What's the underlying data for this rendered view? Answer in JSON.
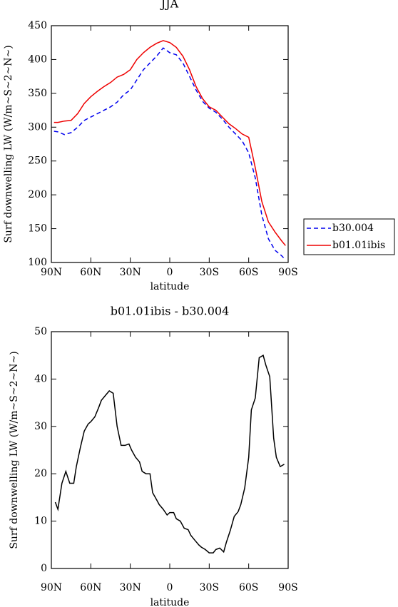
{
  "chart_data": [
    {
      "type": "line",
      "title": "JJA",
      "xlabel": "latitude",
      "ylabel": "Surf downwelling LW (W/m~S~2~N~)",
      "x": [
        88,
        85,
        80,
        75,
        70,
        65,
        60,
        55,
        50,
        45,
        40,
        35,
        30,
        25,
        20,
        15,
        10,
        5,
        0,
        -5,
        -10,
        -15,
        -20,
        -25,
        -30,
        -35,
        -40,
        -45,
        -50,
        -55,
        -60,
        -65,
        -70,
        -75,
        -80,
        -85,
        -88
      ],
      "series": [
        {
          "name": "b30.004",
          "color": "#0000ee",
          "dash": true,
          "values": [
            294,
            293,
            289,
            292,
            300,
            310,
            315,
            320,
            325,
            330,
            337,
            348,
            355,
            370,
            385,
            395,
            405,
            417,
            410,
            407,
            395,
            375,
            355,
            338,
            328,
            322,
            312,
            300,
            290,
            280,
            262,
            225,
            170,
            135,
            118,
            110,
            104
          ]
        },
        {
          "name": "b01.01ibis",
          "color": "#ee0000",
          "dash": false,
          "values": [
            307,
            307,
            309,
            310,
            320,
            335,
            345,
            353,
            360,
            366,
            374,
            378,
            385,
            400,
            410,
            418,
            424,
            428,
            425,
            418,
            405,
            385,
            360,
            342,
            330,
            325,
            315,
            305,
            298,
            290,
            285,
            240,
            190,
            160,
            145,
            132,
            125
          ]
        }
      ],
      "xlim": [
        90,
        -90
      ],
      "xticks": [
        {
          "value": 90,
          "label": "90N"
        },
        {
          "value": 60,
          "label": "60N"
        },
        {
          "value": 30,
          "label": "30N"
        },
        0,
        {
          "value": -30,
          "label": "30S"
        },
        {
          "value": -60,
          "label": "60S"
        },
        {
          "value": -90,
          "label": "90S"
        }
      ],
      "ylim": [
        100,
        450
      ],
      "yticks": [
        100,
        150,
        200,
        250,
        300,
        350,
        400,
        450
      ],
      "legend": "right"
    },
    {
      "type": "line",
      "title": "b01.01ibis - b30.004",
      "xlabel": "latitude",
      "ylabel": "Surf downwelling LW (W/m~S~2~N~)",
      "x": [
        87,
        85,
        82,
        79,
        76,
        73,
        71,
        68,
        65,
        62,
        60,
        57,
        54,
        52,
        49,
        46,
        43,
        40,
        37,
        34,
        31,
        29,
        26,
        23,
        21,
        18,
        15,
        13,
        10,
        8,
        5,
        2,
        0,
        -3,
        -5,
        -8,
        -11,
        -14,
        -16,
        -19,
        -22,
        -24,
        -27,
        -30,
        -33,
        -35,
        -38,
        -41,
        -43,
        -46,
        -49,
        -52,
        -54,
        -57,
        -60,
        -62,
        -65,
        -68,
        -71,
        -73,
        -76,
        -79,
        -81,
        -84,
        -87
      ],
      "values": [
        14,
        12.5,
        18,
        20.5,
        18,
        18,
        21.5,
        25.5,
        29,
        30.5,
        31,
        32,
        34,
        35.5,
        36.5,
        37.5,
        37,
        30,
        26,
        26,
        26.3,
        25,
        23.5,
        22.5,
        20.5,
        20,
        20,
        16,
        14.5,
        13.5,
        12.5,
        11.3,
        11.8,
        11.8,
        10.5,
        10,
        8.5,
        8.2,
        7,
        6,
        5,
        4.5,
        4,
        3.3,
        3.3,
        4,
        4.3,
        3.5,
        5.5,
        8,
        11,
        12,
        13.5,
        17,
        23.5,
        33.5,
        36,
        44.5,
        45,
        43,
        40.5,
        27.5,
        23.5,
        21.5,
        22
      ],
      "color": "#000000",
      "xlim": [
        90,
        -90
      ],
      "xticks": [
        {
          "value": 90,
          "label": "90N"
        },
        {
          "value": 60,
          "label": "60N"
        },
        {
          "value": 30,
          "label": "30N"
        },
        0,
        {
          "value": -30,
          "label": "30S"
        },
        {
          "value": -60,
          "label": "60S"
        },
        {
          "value": -90,
          "label": "90S"
        }
      ],
      "ylim": [
        0,
        50
      ],
      "yticks": [
        0,
        10,
        20,
        30,
        40,
        50
      ]
    }
  ]
}
